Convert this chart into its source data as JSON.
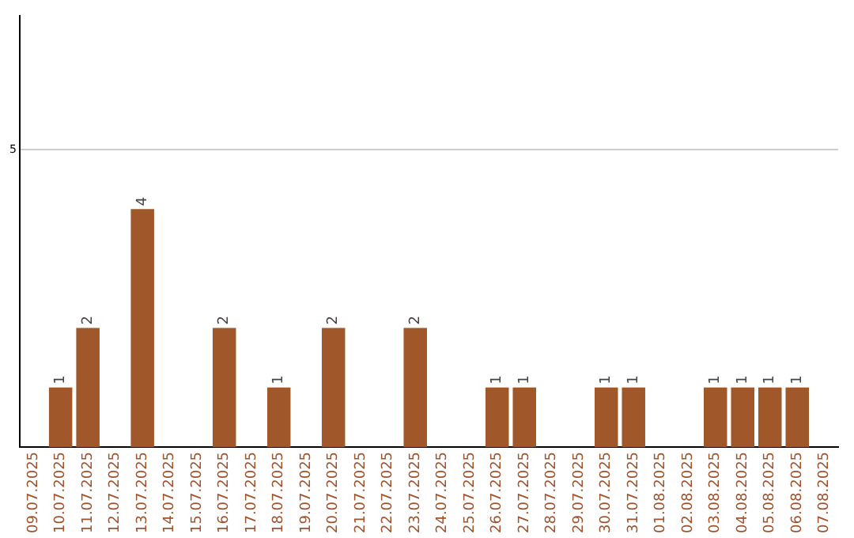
{
  "chart_data": {
    "type": "bar",
    "categories": [
      "09.07.2025",
      "10.07.2025",
      "11.07.2025",
      "12.07.2025",
      "13.07.2025",
      "14.07.2025",
      "15.07.2025",
      "16.07.2025",
      "17.07.2025",
      "18.07.2025",
      "19.07.2025",
      "20.07.2025",
      "21.07.2025",
      "22.07.2025",
      "23.07.2025",
      "24.07.2025",
      "25.07.2025",
      "26.07.2025",
      "27.07.2025",
      "28.07.2025",
      "29.07.2025",
      "30.07.2025",
      "31.07.2025",
      "01.08.2025",
      "02.08.2025",
      "03.08.2025",
      "04.08.2025",
      "05.08.2025",
      "06.08.2025",
      "07.08.2025"
    ],
    "values": [
      0,
      1,
      2,
      0,
      4,
      0,
      0,
      2,
      0,
      1,
      0,
      2,
      0,
      0,
      2,
      0,
      0,
      1,
      1,
      0,
      0,
      1,
      1,
      0,
      0,
      1,
      1,
      1,
      1,
      0
    ],
    "color": "#a0572a",
    "ylim": [
      0,
      7.25
    ],
    "yticks": [
      5
    ],
    "grid": "y",
    "value_labels": [
      null,
      "1",
      "2",
      null,
      "4",
      null,
      null,
      "2",
      null,
      "1",
      null,
      "2",
      null,
      null,
      "2",
      null,
      null,
      "1",
      "1",
      null,
      null,
      "1",
      "1",
      null,
      null,
      "1",
      "1",
      "1",
      "1",
      null
    ],
    "legend": false
  }
}
